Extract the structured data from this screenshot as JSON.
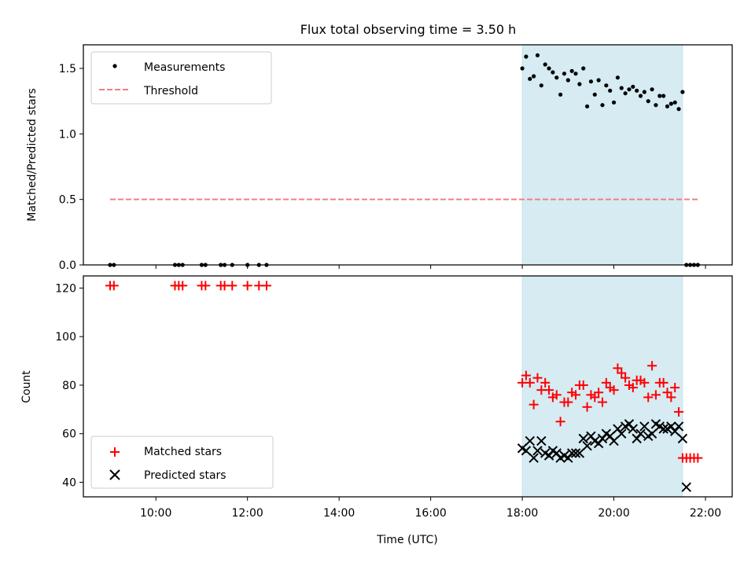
{
  "colors": {
    "band": "#add8e6",
    "threshold": "#f08080",
    "matched": "#ff0000",
    "predicted": "#000000",
    "measure": "#000000"
  },
  "chart_data": [
    {
      "type": "scatter",
      "title": "Flux total observing time = 3.50 h",
      "xlabel": "",
      "ylabel": "Matched/Predicted stars",
      "ylim": [
        0,
        1.68
      ],
      "xlim": [
        "08:25",
        "22:35"
      ],
      "yticks": [
        0.0,
        0.5,
        1.0,
        1.5
      ],
      "ytick_labels": [
        "0.0",
        "0.5",
        "1.0",
        "1.5"
      ],
      "grid": false,
      "legend": "top-left",
      "shaded_band": {
        "from": "18:00",
        "to": "21:30"
      },
      "series": [
        {
          "name": "Measurements",
          "kind": "points",
          "x": [
            "09:00",
            "09:05",
            "10:25",
            "10:30",
            "10:35",
            "11:00",
            "11:05",
            "11:25",
            "11:30",
            "11:40",
            "12:00",
            "12:15",
            "12:25",
            "18:00",
            "18:05",
            "18:10",
            "18:15",
            "18:20",
            "18:25",
            "18:30",
            "18:35",
            "18:40",
            "18:45",
            "18:50",
            "18:55",
            "19:00",
            "19:05",
            "19:10",
            "19:15",
            "19:20",
            "19:25",
            "19:30",
            "19:35",
            "19:40",
            "19:45",
            "19:50",
            "19:55",
            "20:00",
            "20:05",
            "20:10",
            "20:15",
            "20:20",
            "20:25",
            "20:30",
            "20:35",
            "20:40",
            "20:45",
            "20:50",
            "20:55",
            "21:00",
            "21:05",
            "21:10",
            "21:15",
            "21:20",
            "21:25",
            "21:30",
            "21:35",
            "21:40",
            "21:45",
            "21:50"
          ],
          "y": [
            0,
            0,
            0,
            0,
            0,
            0,
            0,
            0,
            0,
            0,
            0,
            0,
            0,
            1.5,
            1.59,
            1.42,
            1.44,
            1.6,
            1.37,
            1.53,
            1.5,
            1.47,
            1.43,
            1.3,
            1.46,
            1.41,
            1.48,
            1.46,
            1.38,
            1.5,
            1.21,
            1.4,
            1.3,
            1.41,
            1.22,
            1.37,
            1.33,
            1.24,
            1.43,
            1.35,
            1.31,
            1.34,
            1.36,
            1.33,
            1.29,
            1.32,
            1.25,
            1.34,
            1.22,
            1.29,
            1.29,
            1.21,
            1.23,
            1.24,
            1.19,
            1.32,
            0,
            0,
            0,
            0
          ]
        },
        {
          "name": "Threshold",
          "kind": "dashed-line",
          "x": [
            "09:00",
            "21:50"
          ],
          "y": [
            0.5,
            0.5
          ]
        }
      ]
    },
    {
      "type": "scatter",
      "title": "",
      "xlabel": "Time (UTC)",
      "ylabel": "Count",
      "ylim": [
        34,
        125
      ],
      "xlim": [
        "08:25",
        "22:35"
      ],
      "yticks": [
        40,
        60,
        80,
        100,
        120
      ],
      "xticks": [
        "10:00",
        "12:00",
        "14:00",
        "16:00",
        "18:00",
        "20:00",
        "22:00"
      ],
      "grid": false,
      "legend": "bottom-left",
      "shaded_band": {
        "from": "18:00",
        "to": "21:30"
      },
      "series": [
        {
          "name": "Matched stars",
          "marker": "plus",
          "x": [
            "09:00",
            "09:05",
            "10:25",
            "10:30",
            "10:35",
            "11:00",
            "11:05",
            "11:25",
            "11:30",
            "11:40",
            "12:00",
            "12:15",
            "12:25",
            "18:00",
            "18:05",
            "18:10",
            "18:15",
            "18:20",
            "18:25",
            "18:30",
            "18:35",
            "18:40",
            "18:45",
            "18:50",
            "18:55",
            "19:00",
            "19:05",
            "19:10",
            "19:15",
            "19:20",
            "19:25",
            "19:30",
            "19:35",
            "19:40",
            "19:45",
            "19:50",
            "19:55",
            "20:00",
            "20:05",
            "20:10",
            "20:15",
            "20:20",
            "20:25",
            "20:30",
            "20:35",
            "20:40",
            "20:45",
            "20:50",
            "20:55",
            "21:00",
            "21:05",
            "21:10",
            "21:15",
            "21:20",
            "21:25",
            "21:30",
            "21:35",
            "21:40",
            "21:45",
            "21:50"
          ],
          "y": [
            121,
            121,
            121,
            121,
            121,
            121,
            121,
            121,
            121,
            121,
            121,
            121,
            121,
            81,
            84,
            81,
            72,
            83,
            78,
            81,
            78,
            75,
            76,
            65,
            73,
            73,
            77,
            76,
            80,
            80,
            71,
            76,
            75,
            77,
            73,
            81,
            79,
            78,
            87,
            85,
            83,
            80,
            79,
            82,
            82,
            81,
            75,
            88,
            76,
            81,
            81,
            77,
            75,
            79,
            69,
            50,
            50,
            50,
            50,
            50
          ]
        },
        {
          "name": "Predicted stars",
          "marker": "x",
          "x": [
            "18:00",
            "18:05",
            "18:10",
            "18:15",
            "18:20",
            "18:25",
            "18:30",
            "18:35",
            "18:40",
            "18:45",
            "18:50",
            "18:55",
            "19:00",
            "19:05",
            "19:10",
            "19:15",
            "19:20",
            "19:25",
            "19:30",
            "19:35",
            "19:40",
            "19:45",
            "19:50",
            "19:55",
            "20:00",
            "20:05",
            "20:10",
            "20:15",
            "20:20",
            "20:25",
            "20:30",
            "20:35",
            "20:40",
            "20:45",
            "20:50",
            "20:55",
            "21:00",
            "21:05",
            "21:10",
            "21:15",
            "21:20",
            "21:25",
            "21:30"
          ],
          "y": [
            54,
            53,
            57,
            50,
            53,
            57,
            52,
            51,
            53,
            52,
            50,
            51,
            50,
            52,
            52,
            52,
            58,
            55,
            59,
            57,
            56,
            58,
            60,
            59,
            57,
            62,
            60,
            63,
            64,
            62,
            58,
            60,
            63,
            59,
            60,
            64,
            63,
            62,
            62,
            63,
            61,
            63,
            58
          ]
        },
        {
          "name": "",
          "marker": "x",
          "x": [
            "21:35"
          ],
          "y": [
            38
          ]
        }
      ]
    }
  ]
}
